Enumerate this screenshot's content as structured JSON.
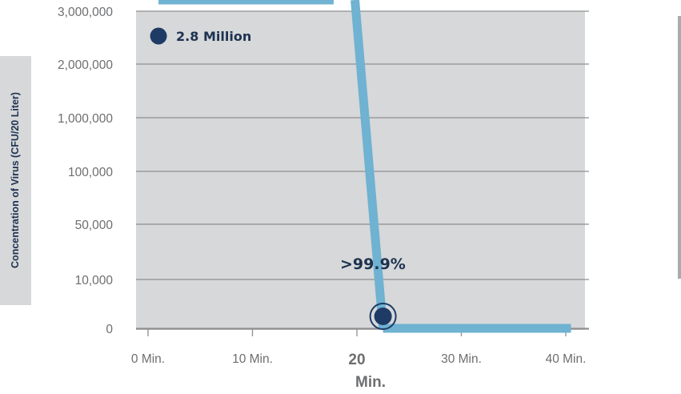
{
  "chart_data": {
    "type": "line",
    "ylabel": "Concentration of Virus (CFU/20 Liter)",
    "xlabel": "Min.",
    "y_ticks": [
      "3,000,000",
      "2,000,000",
      "1,000,000",
      "100,000",
      "50,000",
      "10,000",
      "0"
    ],
    "x_ticks": [
      {
        "label": "0 Min.",
        "value": 0
      },
      {
        "label": "10 Min.",
        "value": 10
      },
      {
        "label": "20",
        "value": 20,
        "emphasis": true
      },
      {
        "label": "30 Min.",
        "value": 30
      },
      {
        "label": "40 Min.",
        "value": 40
      }
    ],
    "x_range": [
      0,
      40
    ],
    "y_scale": "categorical (non-linear, equally spaced tick categories)",
    "series": [
      {
        "points": [
          {
            "x": 1,
            "y": "2,800,000"
          },
          {
            "x": 22.5,
            "y": "0"
          },
          {
            "x": 40.5,
            "y": "0"
          }
        ],
        "color": "#6fb2d2"
      }
    ],
    "annotations": [
      {
        "text": "2.8 Million",
        "at_x": 1
      },
      {
        "text": ">99.9%",
        "at_x": 18
      }
    ],
    "colors": {
      "plot_background": "#d6d8d9",
      "line": "#6fb2d2",
      "marker": "#1e3b66",
      "gridline": "#8e8f91"
    },
    "grid": true
  }
}
